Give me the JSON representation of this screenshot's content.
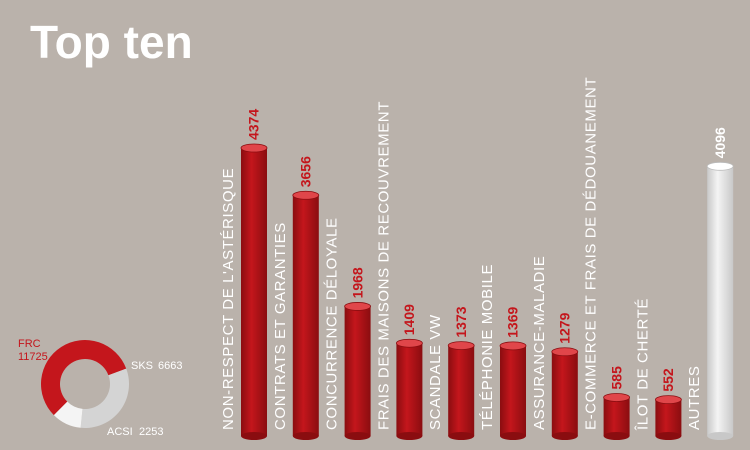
{
  "chart_data": {
    "type": "bar",
    "title": "Top ten",
    "categories": [
      "NON-RESPECT DE L'ASTÉRISQUE",
      "CONTRATS ET GARANTIES",
      "CONCURRENCE DÉLOYALE",
      "FRAIS DES MAISONS DE RECOUVREMENT",
      "SCANDALE VW",
      "TÉLÉPHONIE MOBILE",
      "ASSURANCE-MALADIE",
      "E-COMMERCE ET FRAIS DE DÉDOUANEMENT",
      "ÎLOT DE CHERTÉ",
      "AUTRES"
    ],
    "values": [
      4374,
      3656,
      1968,
      1409,
      1373,
      1369,
      1279,
      585,
      552,
      4096
    ],
    "colors": [
      "#c4161c",
      "#c4161c",
      "#c4161c",
      "#c4161c",
      "#c4161c",
      "#c4161c",
      "#c4161c",
      "#c4161c",
      "#c4161c",
      "#f4f4f4"
    ],
    "inset": {
      "type": "donut",
      "categories": [
        "FRC",
        "SKS",
        "ACSI"
      ],
      "values": [
        11725,
        6663,
        2253
      ],
      "colors": [
        "#c4161c",
        "#d4d4d4",
        "#f4f4f4"
      ]
    }
  }
}
